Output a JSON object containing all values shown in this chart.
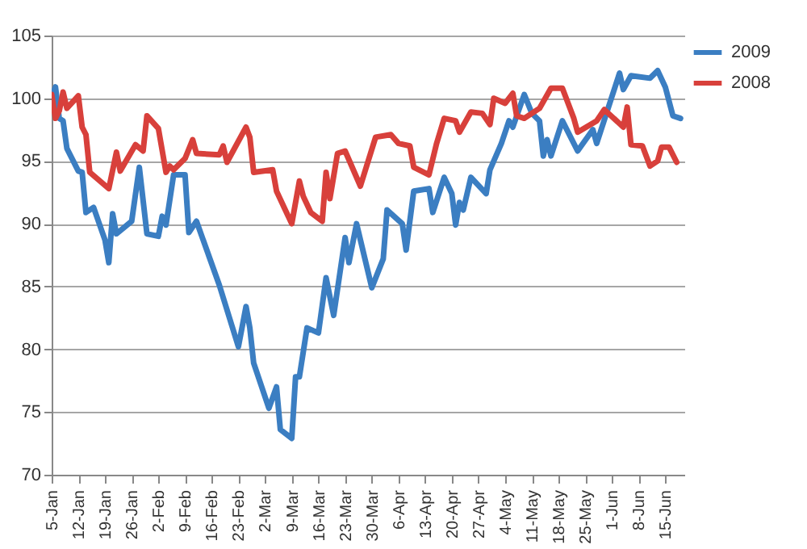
{
  "chart_data": {
    "type": "line",
    "legend": "right",
    "grid": "y",
    "xlim": [
      "--01-05",
      "--06-20"
    ],
    "xticks": [
      {
        "value": "--01-05",
        "label": "5-Jan"
      },
      {
        "value": "--01-12",
        "label": "12-Jan"
      },
      {
        "value": "--01-19",
        "label": "19-Jan"
      },
      {
        "value": "--01-26",
        "label": "26-Jan"
      },
      {
        "value": "--02-02",
        "label": "2-Feb"
      },
      {
        "value": "--02-09",
        "label": "9-Feb"
      },
      {
        "value": "--02-16",
        "label": "16-Feb"
      },
      {
        "value": "--02-23",
        "label": "23-Feb"
      },
      {
        "value": "--03-02",
        "label": "2-Mar"
      },
      {
        "value": "--03-09",
        "label": "9-Mar"
      },
      {
        "value": "--03-16",
        "label": "16-Mar"
      },
      {
        "value": "--03-23",
        "label": "23-Mar"
      },
      {
        "value": "--03-30",
        "label": "30-Mar"
      },
      {
        "value": "--04-06",
        "label": "6-Apr"
      },
      {
        "value": "--04-13",
        "label": "13-Apr"
      },
      {
        "value": "--04-20",
        "label": "20-Apr"
      },
      {
        "value": "--04-27",
        "label": "27-Apr"
      },
      {
        "value": "--05-04",
        "label": "4-May"
      },
      {
        "value": "--05-11",
        "label": "11-May"
      },
      {
        "value": "--05-18",
        "label": "18-May"
      },
      {
        "value": "--05-25",
        "label": "25-May"
      },
      {
        "value": "--06-01",
        "label": "1-Jun"
      },
      {
        "value": "--06-08",
        "label": "8-Jun"
      },
      {
        "value": "--06-15",
        "label": "15-Jun"
      }
    ],
    "ylim": [
      70,
      105
    ],
    "yticks": [
      70,
      75,
      80,
      85,
      90,
      95,
      100,
      105
    ],
    "series": [
      {
        "name": "2009",
        "color": "#3b7ec2",
        "x": [
          "--01-05",
          "--01-06",
          "--01-07",
          "--01-08",
          "--01-09",
          "--01-12",
          "--01-13",
          "--01-14",
          "--01-16",
          "--01-19",
          "--01-20",
          "--01-21",
          "--01-22",
          "--01-26",
          "--01-28",
          "--01-30",
          "--02-02",
          "--02-03",
          "--02-04",
          "--02-06",
          "--02-09",
          "--02-10",
          "--02-12",
          "--02-18",
          "--02-23",
          "--02-25",
          "--02-26",
          "--02-27",
          "--03-03",
          "--03-05",
          "--03-06",
          "--03-09",
          "--03-10",
          "--03-11",
          "--03-13",
          "--03-16",
          "--03-18",
          "--03-20",
          "--03-23",
          "--03-24",
          "--03-26",
          "--03-30",
          "--04-02",
          "--04-03",
          "--04-07",
          "--04-08",
          "--04-10",
          "--04-14",
          "--04-15",
          "--04-18",
          "--04-20",
          "--04-21",
          "--04-22",
          "--04-23",
          "--04-25",
          "--04-29",
          "--04-30",
          "--05-03",
          "--05-05",
          "--05-06",
          "--05-09",
          "--05-11",
          "--05-13",
          "--05-14",
          "--05-15",
          "--05-16",
          "--05-19",
          "--05-23",
          "--05-27",
          "--05-28",
          "--05-31",
          "--06-03",
          "--06-04",
          "--06-06",
          "--06-11",
          "--06-13",
          "--06-15",
          "--06-17",
          "--06-19"
        ],
        "values": [
          100.1,
          100.9,
          98.4,
          98.2,
          96.0,
          94.2,
          94.1,
          90.9,
          91.3,
          88.7,
          86.9,
          90.8,
          89.2,
          90.2,
          94.5,
          89.2,
          89.0,
          90.6,
          89.9,
          93.9,
          93.9,
          89.3,
          90.2,
          85.1,
          80.2,
          83.4,
          81.7,
          78.9,
          75.3,
          77.0,
          73.6,
          72.9,
          77.8,
          77.8,
          81.7,
          81.3,
          85.7,
          82.7,
          88.9,
          86.9,
          90.0,
          84.9,
          87.2,
          91.1,
          90.0,
          87.9,
          92.6,
          92.8,
          90.9,
          93.7,
          92.4,
          89.9,
          91.7,
          91.1,
          93.7,
          92.4,
          94.3,
          96.4,
          98.2,
          97.7,
          100.3,
          98.8,
          98.2,
          95.4,
          96.7,
          95.4,
          98.2,
          95.8,
          97.5,
          96.4,
          99.2,
          102.0,
          100.7,
          101.8,
          101.6,
          102.2,
          100.9,
          98.6,
          98.4
        ]
      },
      {
        "name": "2008",
        "color": "#d8403b",
        "x": [
          "--01-05",
          "--01-06",
          "--01-07",
          "--01-08",
          "--01-09",
          "--01-12",
          "--01-13",
          "--01-14",
          "--01-15",
          "--01-20",
          "--01-22",
          "--01-23",
          "--01-27",
          "--01-29",
          "--01-30",
          "--02-02",
          "--02-04",
          "--02-05",
          "--02-06",
          "--02-09",
          "--02-11",
          "--02-12",
          "--02-18",
          "--02-19",
          "--02-20",
          "--02-25",
          "--02-26",
          "--02-27",
          "--03-04",
          "--03-05",
          "--03-07",
          "--03-09",
          "--03-11",
          "--03-12",
          "--03-14",
          "--03-17",
          "--03-18",
          "--03-19",
          "--03-21",
          "--03-23",
          "--03-27",
          "--03-31",
          "--04-04",
          "--04-06",
          "--04-09",
          "--04-10",
          "--04-14",
          "--04-16",
          "--04-18",
          "--04-21",
          "--04-22",
          "--04-25",
          "--04-28",
          "--04-30",
          "--05-01",
          "--05-04",
          "--05-06",
          "--05-07",
          "--05-09",
          "--05-13",
          "--05-16",
          "--05-19",
          "--05-22",
          "--05-23",
          "--05-28",
          "--05-30",
          "--06-04",
          "--06-05",
          "--06-06",
          "--06-09",
          "--06-11",
          "--06-13",
          "--06-14",
          "--06-16",
          "--06-18"
        ],
        "values": [
          100.3,
          98.4,
          99.0,
          100.5,
          99.2,
          100.2,
          97.7,
          97.1,
          94.1,
          92.8,
          95.7,
          94.2,
          96.3,
          95.8,
          98.6,
          97.6,
          94.1,
          94.6,
          94.3,
          95.2,
          96.7,
          95.6,
          95.5,
          96.2,
          94.9,
          97.7,
          96.9,
          94.1,
          94.3,
          92.6,
          91.3,
          90.0,
          93.4,
          92.2,
          90.9,
          90.2,
          94.1,
          92.0,
          95.6,
          95.8,
          93.0,
          96.9,
          97.1,
          96.4,
          96.2,
          94.5,
          93.9,
          96.4,
          98.4,
          98.2,
          97.3,
          98.9,
          98.8,
          97.9,
          100.0,
          99.6,
          100.4,
          98.6,
          98.4,
          99.2,
          100.8,
          100.8,
          98.4,
          97.3,
          98.2,
          99.1,
          97.7,
          99.3,
          96.3,
          96.2,
          94.6,
          95.0,
          96.1,
          96.1,
          94.9
        ]
      }
    ]
  }
}
